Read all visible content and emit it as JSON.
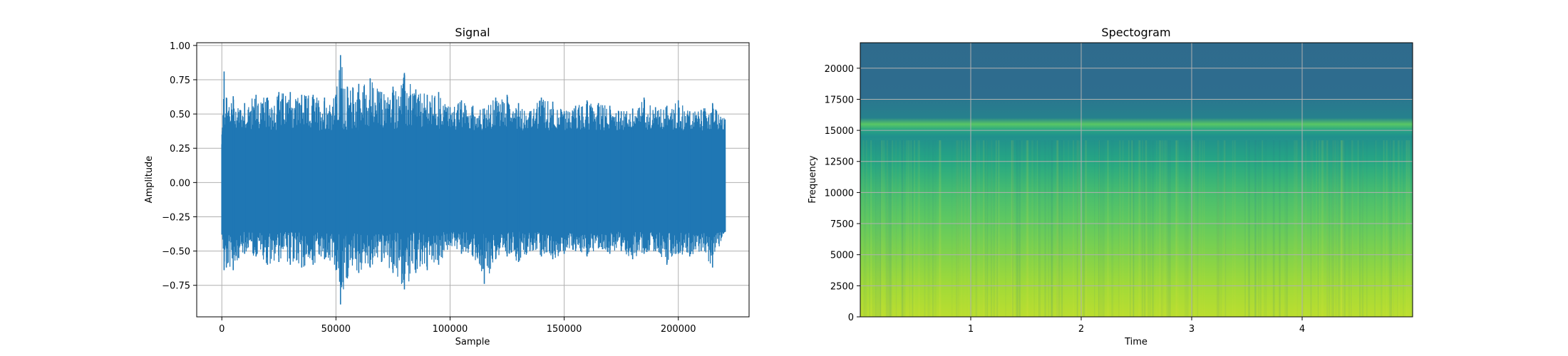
{
  "chart_data": [
    {
      "type": "line",
      "title": "Signal",
      "xlabel": "Sample",
      "ylabel": "Amplitude",
      "xlim": [
        -11000,
        231000
      ],
      "ylim": [
        -0.98,
        1.02
      ],
      "xticks": [
        0,
        50000,
        100000,
        150000,
        200000
      ],
      "xtick_labels": [
        "0",
        "50000",
        "100000",
        "150000",
        "200000"
      ],
      "yticks": [
        -0.75,
        -0.5,
        -0.25,
        0.0,
        0.25,
        0.5,
        0.75,
        1.0
      ],
      "ytick_labels": [
        "−0.75",
        "−0.50",
        "−0.25",
        "0.00",
        "0.25",
        "0.50",
        "0.75",
        "1.00"
      ],
      "grid": true,
      "color": "#1f77b4",
      "series": [
        {
          "x": [
            0,
            1000,
            2000,
            5000,
            10000,
            15000,
            20000,
            25000,
            30000,
            35000,
            40000,
            45000,
            50000,
            52000,
            55000,
            60000,
            65000,
            70000,
            75000,
            80000,
            85000,
            90000,
            95000,
            100000,
            105000,
            110000,
            115000,
            120000,
            125000,
            130000,
            135000,
            140000,
            145000,
            150000,
            155000,
            160000,
            165000,
            170000,
            175000,
            180000,
            185000,
            190000,
            195000,
            200000,
            205000,
            210000,
            215000,
            220500
          ],
          "max": [
            0.28,
            0.81,
            0.62,
            0.63,
            0.58,
            0.64,
            0.62,
            0.66,
            0.66,
            0.64,
            0.64,
            0.62,
            0.64,
            0.93,
            0.7,
            0.72,
            0.76,
            0.66,
            0.7,
            0.8,
            0.68,
            0.64,
            0.66,
            0.55,
            0.6,
            0.56,
            0.54,
            0.62,
            0.64,
            0.58,
            0.52,
            0.62,
            0.59,
            0.52,
            0.56,
            0.6,
            0.58,
            0.56,
            0.52,
            0.54,
            0.62,
            0.55,
            0.56,
            0.6,
            0.52,
            0.53,
            0.58,
            0.46
          ],
          "min": [
            -0.38,
            -0.64,
            -0.62,
            -0.64,
            -0.52,
            -0.54,
            -0.6,
            -0.58,
            -0.6,
            -0.62,
            -0.6,
            -0.56,
            -0.64,
            -0.89,
            -0.7,
            -0.66,
            -0.62,
            -0.58,
            -0.66,
            -0.78,
            -0.66,
            -0.64,
            -0.6,
            -0.46,
            -0.52,
            -0.54,
            -0.74,
            -0.56,
            -0.54,
            -0.58,
            -0.5,
            -0.54,
            -0.56,
            -0.52,
            -0.5,
            -0.54,
            -0.48,
            -0.52,
            -0.5,
            -0.56,
            -0.52,
            -0.5,
            -0.6,
            -0.52,
            -0.54,
            -0.5,
            -0.62,
            -0.36
          ]
        }
      ]
    },
    {
      "type": "heatmap",
      "title": "Spectogram",
      "xlabel": "Time",
      "ylabel": "Frequency",
      "xlim": [
        0.0,
        5.0
      ],
      "ylim": [
        0,
        22050
      ],
      "xticks": [
        1,
        2,
        3,
        4
      ],
      "xtick_labels": [
        "1",
        "2",
        "3",
        "4"
      ],
      "yticks": [
        0,
        2500,
        5000,
        7500,
        10000,
        12500,
        15000,
        17500,
        20000
      ],
      "ytick_labels": [
        "0",
        "2500",
        "5000",
        "7500",
        "10000",
        "12500",
        "15000",
        "17500",
        "20000"
      ],
      "grid": true,
      "colormap": "viridis",
      "frequency_profile": [
        {
          "freq": 0,
          "level": 0.9
        },
        {
          "freq": 2500,
          "level": 0.86
        },
        {
          "freq": 5000,
          "level": 0.81
        },
        {
          "freq": 7500,
          "level": 0.76
        },
        {
          "freq": 10000,
          "level": 0.7
        },
        {
          "freq": 12500,
          "level": 0.6
        },
        {
          "freq": 14500,
          "level": 0.5
        },
        {
          "freq": 15000,
          "level": 0.58
        },
        {
          "freq": 15500,
          "level": 0.74
        },
        {
          "freq": 16000,
          "level": 0.44
        },
        {
          "freq": 17500,
          "level": 0.4
        },
        {
          "freq": 17600,
          "level": 0.36
        },
        {
          "freq": 22050,
          "level": 0.35
        }
      ]
    }
  ]
}
